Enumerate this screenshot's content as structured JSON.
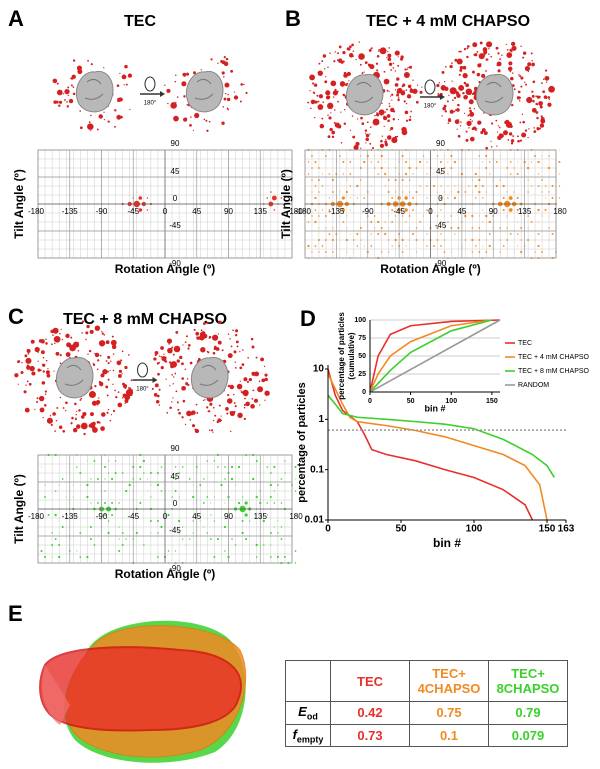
{
  "panels": {
    "letters": [
      "A",
      "B",
      "C",
      "D",
      "E"
    ],
    "rotation_label": "180°"
  },
  "chart_data": [
    {
      "type": "scatter",
      "title": "TEC",
      "xlabel": "Rotation Angle (º)",
      "ylabel": "Tilt Angle (º)",
      "xlim": [
        -180,
        180
      ],
      "ylim": [
        -90,
        90
      ],
      "xticks": [
        -180,
        -135,
        -90,
        -45,
        0,
        45,
        90,
        135,
        180
      ],
      "yticks": [
        90,
        45,
        0,
        -45,
        -90
      ],
      "color": "#e8302a",
      "grid": true
    },
    {
      "type": "scatter",
      "title": "TEC + 4 mM CHAPSO",
      "xlabel": "Rotation Angle (º)",
      "ylabel": "Tilt Angle (º)",
      "xlim": [
        -180,
        180
      ],
      "ylim": [
        -90,
        90
      ],
      "xticks": [
        -180,
        -135,
        -90,
        -45,
        0,
        45,
        90,
        135,
        180
      ],
      "yticks": [
        90,
        45,
        0,
        -45,
        -90
      ],
      "color": "#f08a24",
      "grid": true
    },
    {
      "type": "scatter",
      "title": "TEC + 8 mM CHAPSO",
      "xlabel": "Rotation Angle (º)",
      "ylabel": "Tilt Angle (º)",
      "xlim": [
        -180,
        180
      ],
      "ylim": [
        -90,
        90
      ],
      "xticks": [
        -180,
        -135,
        -90,
        -45,
        0,
        45,
        90,
        135,
        180
      ],
      "yticks": [
        90,
        45,
        0,
        -45,
        -90
      ],
      "color": "#39d12a",
      "grid": true
    },
    {
      "type": "line",
      "xlabel": "bin #",
      "ylabel": "percentage of particles",
      "xlim": [
        0,
        163
      ],
      "ylim": [
        0.01,
        12
      ],
      "yscale": "log",
      "xticks": [
        0,
        50,
        100,
        150,
        163
      ],
      "yticks": [
        0.01,
        0.1,
        1,
        10
      ],
      "series": [
        {
          "color": "#e8302a",
          "x": [
            0,
            5,
            10,
            20,
            25,
            30,
            40,
            60,
            80,
            100,
            120,
            135,
            140
          ],
          "values": [
            10,
            3,
            1.5,
            0.9,
            0.5,
            0.25,
            0.2,
            0.15,
            0.1,
            0.07,
            0.04,
            0.02,
            0.01
          ]
        },
        {
          "color": "#f08a24",
          "x": [
            0,
            5,
            10,
            15,
            20,
            40,
            60,
            80,
            100,
            120,
            135,
            145,
            150
          ],
          "values": [
            8,
            4,
            2,
            1.1,
            0.9,
            0.75,
            0.6,
            0.45,
            0.3,
            0.2,
            0.12,
            0.05,
            0.01
          ]
        },
        {
          "color": "#39d12a",
          "x": [
            0,
            5,
            10,
            20,
            40,
            60,
            80,
            100,
            120,
            140,
            150,
            155
          ],
          "values": [
            3,
            2,
            1.3,
            1.1,
            1,
            0.9,
            0.8,
            0.65,
            0.4,
            0.2,
            0.12,
            0.07
          ]
        },
        {
          "color": "#999999",
          "dashed": true,
          "x": [
            0,
            163
          ],
          "values": [
            0.61,
            0.61
          ]
        }
      ]
    },
    {
      "type": "line",
      "xlabel": "bin #",
      "ylabel": [
        "percentage of particles",
        "(cumulative)"
      ],
      "xlim": [
        0,
        160
      ],
      "ylim": [
        0,
        100
      ],
      "xticks": [
        0,
        50,
        100,
        150
      ],
      "yticks": [
        0,
        25,
        50,
        75,
        100
      ],
      "grid": true,
      "series": [
        {
          "name": "TEC",
          "color": "#e8302a",
          "x": [
            0,
            10,
            25,
            50,
            100,
            160
          ],
          "values": [
            0,
            50,
            80,
            92,
            98,
            100
          ]
        },
        {
          "name": "TEC + 4 mM CHAPSO",
          "color": "#f08a24",
          "x": [
            0,
            10,
            25,
            50,
            100,
            150
          ],
          "values": [
            0,
            25,
            50,
            70,
            92,
            100
          ]
        },
        {
          "name": "TEC + 8 mM CHAPSO",
          "color": "#39d12a",
          "x": [
            0,
            25,
            50,
            100,
            150
          ],
          "values": [
            0,
            30,
            55,
            85,
            100
          ]
        },
        {
          "name": "RANDOM",
          "color": "#999999",
          "x": [
            0,
            160
          ],
          "values": [
            0,
            100
          ]
        }
      ]
    }
  ],
  "table": {
    "header": [
      "TEC",
      "TEC+ 4CHAPSO",
      "TEC+ 8CHAPSO"
    ],
    "column_colors": [
      "#e8302a",
      "#f08a24",
      "#39d12a"
    ],
    "rows": [
      [
        {
          "main": "E",
          "sub": "od"
        },
        0.42,
        0.75,
        0.79
      ],
      [
        {
          "main": "f",
          "sub": "empty"
        },
        0.73,
        0.1,
        0.079
      ]
    ]
  }
}
